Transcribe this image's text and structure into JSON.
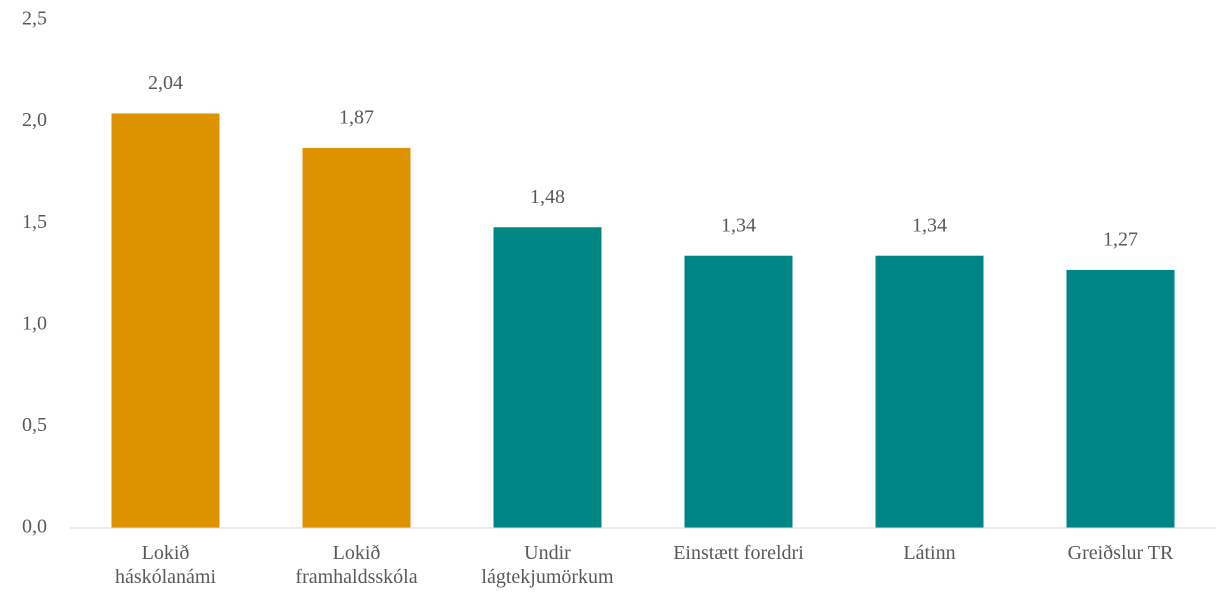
{
  "chart_data": {
    "type": "bar",
    "categories": [
      "Lokið\nháskólanámi",
      "Lokið\nframhaldsskóla",
      "Undir\nlágtekjumörkum",
      "Einstætt foreldri",
      "Látinn",
      "Greiðslur TR"
    ],
    "values": [
      2.04,
      1.87,
      1.48,
      1.34,
      1.34,
      1.27
    ],
    "value_labels": [
      "2,04",
      "1,87",
      "1,48",
      "1,34",
      "1,34",
      "1,27"
    ],
    "colors": [
      "#dd9200",
      "#dd9200",
      "#008585",
      "#008585",
      "#008585",
      "#008585"
    ],
    "ylim": [
      0,
      2.5
    ],
    "yticks": [
      {
        "value": 0,
        "label": "0,0"
      },
      {
        "value": 0.5,
        "label": "0,5"
      },
      {
        "value": 1,
        "label": "1,0"
      },
      {
        "value": 1.5,
        "label": "1,5"
      },
      {
        "value": 2,
        "label": "2,0"
      },
      {
        "value": 2.5,
        "label": "2,5"
      }
    ],
    "grid": false
  }
}
